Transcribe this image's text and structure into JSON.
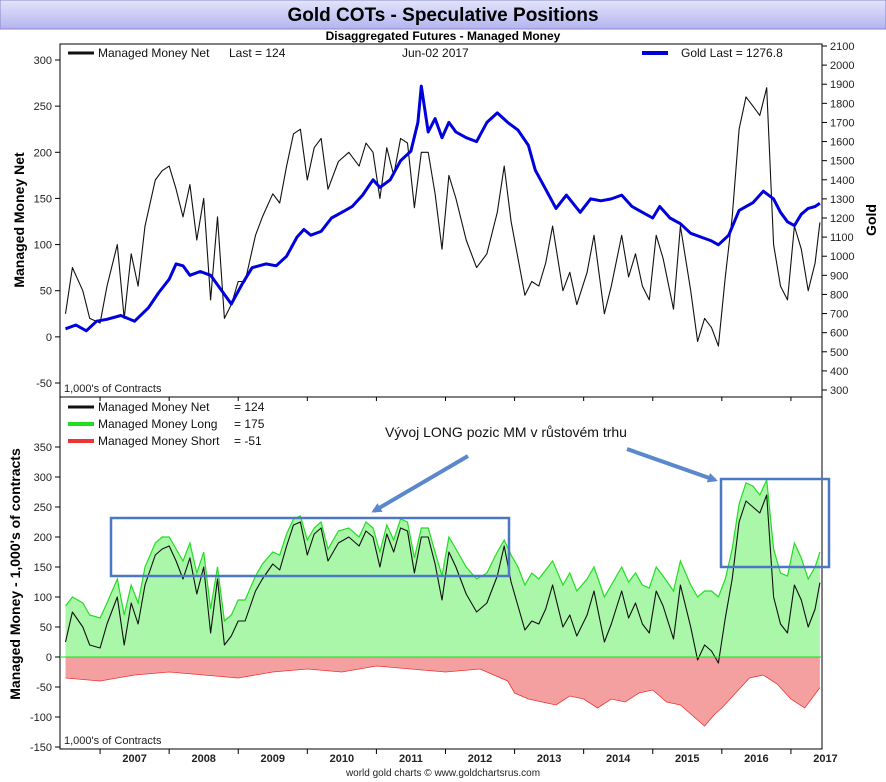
{
  "title": "Gold COTs - Speculative Positions",
  "subtitle": "Disaggregated Futures - Managed Money",
  "footer": "world gold charts © www.goldchartsrus.com",
  "annotation": "Vývoj LONG pozic MM v růstovém trhu",
  "top_panel": {
    "legend_net": "Managed Money Net",
    "legend_net_last": "Last = 124",
    "date": "Jun-02  2017",
    "legend_gold": "Gold Last = 1276.8",
    "left_axis_label": "Managed Money Net",
    "right_axis_label": "Gold",
    "contracts_label": "1,000's of Contracts",
    "left_ticks": [
      "300",
      "250",
      "200",
      "150",
      "100",
      "50",
      "0",
      "-50"
    ],
    "right_ticks": [
      "2100",
      "2000",
      "1900",
      "1800",
      "1700",
      "1600",
      "1500",
      "1400",
      "1300",
      "1200",
      "1100",
      "1000",
      "900",
      "800",
      "700",
      "600",
      "500",
      "400",
      "300"
    ]
  },
  "bottom_panel": {
    "legend_net": "Managed Money Net",
    "legend_net_value": "= 124",
    "legend_long": "Managed Money Long",
    "legend_long_value": "= 175",
    "legend_short": "Managed Money Short",
    "legend_short_value": "= -51",
    "axis_label": "Managed Money - 1,000's of contracts",
    "contracts_label": "1,000's of Contracts",
    "ticks": [
      "350",
      "300",
      "250",
      "200",
      "150",
      "100",
      "50",
      "0",
      "-50",
      "-100",
      "-150"
    ]
  },
  "x_axis": {
    "years": [
      "2007",
      "2008",
      "2009",
      "2010",
      "2011",
      "2012",
      "2013",
      "2014",
      "2015",
      "2016",
      "2017"
    ]
  },
  "colors": {
    "title_bg_top": "#e4e4fb",
    "title_bg_bottom": "#b4b4f0",
    "net_line": "#111111",
    "gold_line": "#0000dd",
    "long_fill": "#aaf7aa",
    "long_line": "#22dd22",
    "short_fill": "#f5a0a0",
    "short_line": "#ee3333",
    "box": "#4a78c4",
    "arrow": "#5b87cc"
  },
  "chart_data": [
    {
      "type": "line",
      "title": "Gold COTs - Speculative Positions",
      "ylabel": "Managed Money Net",
      "y2label": "Gold",
      "ylim": [
        -50,
        300
      ],
      "y2lim": [
        300,
        2100
      ],
      "grid": false,
      "series": [
        {
          "name": "Managed Money Net",
          "axis": "left",
          "x": [
            2006.5,
            2006.6,
            2006.75,
            2006.85,
            2007.0,
            2007.1,
            2007.25,
            2007.35,
            2007.45,
            2007.55,
            2007.65,
            2007.8,
            2007.9,
            2008.0,
            2008.1,
            2008.2,
            2008.3,
            2008.4,
            2008.5,
            2008.6,
            2008.7,
            2008.8,
            2008.9,
            2009.0,
            2009.1,
            2009.25,
            2009.35,
            2009.5,
            2009.6,
            2009.7,
            2009.8,
            2009.9,
            2010.0,
            2010.1,
            2010.2,
            2010.3,
            2010.45,
            2010.6,
            2010.75,
            2010.85,
            2010.95,
            2011.05,
            2011.15,
            2011.25,
            2011.35,
            2011.45,
            2011.55,
            2011.65,
            2011.75,
            2011.85,
            2011.95,
            2012.05,
            2012.15,
            2012.3,
            2012.45,
            2012.6,
            2012.75,
            2012.85,
            2012.95,
            2013.05,
            2013.15,
            2013.25,
            2013.35,
            2013.45,
            2013.55,
            2013.7,
            2013.8,
            2013.9,
            2014.05,
            2014.15,
            2014.3,
            2014.4,
            2014.55,
            2014.65,
            2014.75,
            2014.85,
            2014.95,
            2015.05,
            2015.15,
            2015.3,
            2015.4,
            2015.55,
            2015.65,
            2015.75,
            2015.85,
            2015.95,
            2016.05,
            2016.15,
            2016.25,
            2016.35,
            2016.45,
            2016.55,
            2016.65,
            2016.75,
            2016.85,
            2016.95,
            2017.05,
            2017.15,
            2017.25,
            2017.35,
            2017.42
          ],
          "y": [
            25,
            75,
            50,
            20,
            15,
            55,
            100,
            20,
            90,
            55,
            120,
            170,
            180,
            185,
            160,
            130,
            165,
            105,
            150,
            40,
            130,
            20,
            35,
            60,
            60,
            110,
            130,
            155,
            145,
            185,
            220,
            225,
            170,
            205,
            215,
            160,
            190,
            200,
            185,
            210,
            200,
            150,
            205,
            175,
            215,
            210,
            140,
            200,
            200,
            155,
            95,
            175,
            150,
            105,
            75,
            90,
            135,
            185,
            125,
            85,
            45,
            60,
            55,
            80,
            120,
            50,
            70,
            35,
            70,
            110,
            25,
            55,
            110,
            65,
            90,
            55,
            40,
            110,
            85,
            30,
            120,
            50,
            -5,
            20,
            10,
            -10,
            65,
            130,
            225,
            260,
            250,
            240,
            270,
            100,
            55,
            40,
            120,
            95,
            50,
            80,
            124
          ]
        },
        {
          "name": "Gold",
          "axis": "right",
          "x": [
            2006.5,
            2006.65,
            2006.8,
            2006.95,
            2007.1,
            2007.3,
            2007.5,
            2007.7,
            2007.85,
            2008.0,
            2008.1,
            2008.2,
            2008.3,
            2008.45,
            2008.6,
            2008.8,
            2008.9,
            2009.05,
            2009.2,
            2009.4,
            2009.55,
            2009.7,
            2009.85,
            2009.95,
            2010.05,
            2010.2,
            2010.35,
            2010.5,
            2010.65,
            2010.8,
            2010.95,
            2011.05,
            2011.2,
            2011.35,
            2011.5,
            2011.6,
            2011.65,
            2011.75,
            2011.85,
            2011.95,
            2012.05,
            2012.15,
            2012.3,
            2012.45,
            2012.6,
            2012.75,
            2012.9,
            2013.05,
            2013.2,
            2013.3,
            2013.45,
            2013.6,
            2013.75,
            2013.95,
            2014.1,
            2014.25,
            2014.4,
            2014.55,
            2014.7,
            2014.85,
            2015.0,
            2015.1,
            2015.25,
            2015.4,
            2015.55,
            2015.7,
            2015.85,
            2015.95,
            2016.1,
            2016.25,
            2016.45,
            2016.6,
            2016.75,
            2016.85,
            2016.95,
            2017.05,
            2017.15,
            2017.25,
            2017.35,
            2017.42
          ],
          "y": [
            620,
            640,
            610,
            660,
            670,
            690,
            660,
            730,
            810,
            880,
            960,
            950,
            900,
            920,
            900,
            800,
            750,
            850,
            940,
            960,
            950,
            1000,
            1100,
            1140,
            1110,
            1130,
            1200,
            1230,
            1260,
            1320,
            1400,
            1360,
            1400,
            1500,
            1550,
            1700,
            1890,
            1650,
            1720,
            1620,
            1700,
            1650,
            1620,
            1600,
            1700,
            1750,
            1700,
            1660,
            1580,
            1450,
            1350,
            1250,
            1320,
            1230,
            1300,
            1290,
            1300,
            1320,
            1260,
            1230,
            1200,
            1260,
            1200,
            1170,
            1120,
            1100,
            1080,
            1060,
            1110,
            1240,
            1280,
            1340,
            1300,
            1230,
            1180,
            1160,
            1220,
            1250,
            1260,
            1276.8
          ]
        }
      ]
    },
    {
      "type": "area",
      "ylabel": "Managed Money - 1,000's of contracts",
      "ylim": [
        -150,
        350
      ],
      "grid": false,
      "annotation": "Vývoj LONG pozic MM v růstovém trhu",
      "series": [
        {
          "name": "Managed Money Long",
          "x": [
            2006.5,
            2006.6,
            2006.75,
            2006.85,
            2007.0,
            2007.1,
            2007.25,
            2007.35,
            2007.45,
            2007.55,
            2007.65,
            2007.8,
            2007.9,
            2008.0,
            2008.1,
            2008.2,
            2008.3,
            2008.4,
            2008.5,
            2008.6,
            2008.7,
            2008.8,
            2008.9,
            2009.0,
            2009.1,
            2009.25,
            2009.35,
            2009.5,
            2009.6,
            2009.7,
            2009.8,
            2009.9,
            2010.0,
            2010.1,
            2010.2,
            2010.3,
            2010.45,
            2010.6,
            2010.75,
            2010.85,
            2010.95,
            2011.05,
            2011.15,
            2011.25,
            2011.35,
            2011.45,
            2011.55,
            2011.65,
            2011.75,
            2011.85,
            2011.95,
            2012.05,
            2012.15,
            2012.3,
            2012.45,
            2012.6,
            2012.75,
            2012.85,
            2012.95,
            2013.05,
            2013.15,
            2013.25,
            2013.35,
            2013.45,
            2013.55,
            2013.7,
            2013.8,
            2013.9,
            2014.05,
            2014.15,
            2014.3,
            2014.4,
            2014.55,
            2014.65,
            2014.75,
            2014.85,
            2014.95,
            2015.05,
            2015.15,
            2015.3,
            2015.4,
            2015.55,
            2015.65,
            2015.75,
            2015.85,
            2015.95,
            2016.05,
            2016.15,
            2016.25,
            2016.35,
            2016.45,
            2016.55,
            2016.65,
            2016.75,
            2016.85,
            2016.95,
            2017.05,
            2017.15,
            2017.25,
            2017.35,
            2017.42
          ],
          "y": [
            85,
            100,
            90,
            70,
            65,
            90,
            130,
            70,
            120,
            90,
            150,
            190,
            200,
            200,
            180,
            160,
            190,
            140,
            175,
            80,
            150,
            60,
            70,
            95,
            95,
            135,
            155,
            175,
            170,
            205,
            230,
            235,
            195,
            215,
            225,
            180,
            210,
            215,
            200,
            225,
            215,
            175,
            220,
            195,
            230,
            225,
            165,
            215,
            215,
            175,
            135,
            200,
            180,
            150,
            130,
            140,
            175,
            195,
            170,
            150,
            120,
            140,
            130,
            145,
            160,
            120,
            140,
            110,
            130,
            150,
            100,
            120,
            150,
            125,
            140,
            120,
            115,
            150,
            135,
            110,
            160,
            120,
            100,
            110,
            110,
            100,
            130,
            180,
            255,
            290,
            285,
            270,
            295,
            180,
            140,
            135,
            190,
            165,
            130,
            150,
            175
          ]
        },
        {
          "name": "Managed Money Short",
          "x": [
            2006.5,
            2007.0,
            2007.5,
            2008.0,
            2008.5,
            2009.0,
            2009.5,
            2010.0,
            2010.5,
            2011.0,
            2011.5,
            2012.0,
            2012.5,
            2012.9,
            2013.0,
            2013.2,
            2013.4,
            2013.6,
            2013.8,
            2014.0,
            2014.2,
            2014.4,
            2014.6,
            2014.8,
            2015.0,
            2015.2,
            2015.4,
            2015.6,
            2015.75,
            2015.9,
            2016.0,
            2016.2,
            2016.4,
            2016.6,
            2016.8,
            2017.0,
            2017.2,
            2017.42
          ],
          "y": [
            -35,
            -40,
            -30,
            -25,
            -30,
            -35,
            -25,
            -20,
            -25,
            -15,
            -20,
            -25,
            -20,
            -40,
            -60,
            -70,
            -75,
            -80,
            -65,
            -70,
            -85,
            -70,
            -75,
            -60,
            -55,
            -75,
            -80,
            -100,
            -115,
            -95,
            -85,
            -60,
            -35,
            -30,
            -45,
            -70,
            -85,
            -51
          ]
        },
        {
          "name": "Managed Money Net",
          "x": [
            2006.5,
            2006.6,
            2006.75,
            2006.85,
            2007.0,
            2007.1,
            2007.25,
            2007.35,
            2007.45,
            2007.55,
            2007.65,
            2007.8,
            2007.9,
            2008.0,
            2008.1,
            2008.2,
            2008.3,
            2008.4,
            2008.5,
            2008.6,
            2008.7,
            2008.8,
            2008.9,
            2009.0,
            2009.1,
            2009.25,
            2009.35,
            2009.5,
            2009.6,
            2009.7,
            2009.8,
            2009.9,
            2010.0,
            2010.1,
            2010.2,
            2010.3,
            2010.45,
            2010.6,
            2010.75,
            2010.85,
            2010.95,
            2011.05,
            2011.15,
            2011.25,
            2011.35,
            2011.45,
            2011.55,
            2011.65,
            2011.75,
            2011.85,
            2011.95,
            2012.05,
            2012.15,
            2012.3,
            2012.45,
            2012.6,
            2012.75,
            2012.85,
            2012.95,
            2013.05,
            2013.15,
            2013.25,
            2013.35,
            2013.45,
            2013.55,
            2013.7,
            2013.8,
            2013.9,
            2014.05,
            2014.15,
            2014.3,
            2014.4,
            2014.55,
            2014.65,
            2014.75,
            2014.85,
            2014.95,
            2015.05,
            2015.15,
            2015.3,
            2015.4,
            2015.55,
            2015.65,
            2015.75,
            2015.85,
            2015.95,
            2016.05,
            2016.15,
            2016.25,
            2016.35,
            2016.45,
            2016.55,
            2016.65,
            2016.75,
            2016.85,
            2016.95,
            2017.05,
            2017.15,
            2017.25,
            2017.35,
            2017.42
          ],
          "y": [
            25,
            75,
            50,
            20,
            15,
            55,
            100,
            20,
            90,
            55,
            120,
            170,
            180,
            185,
            160,
            130,
            165,
            105,
            150,
            40,
            130,
            20,
            35,
            60,
            60,
            110,
            130,
            155,
            145,
            185,
            220,
            225,
            170,
            205,
            215,
            160,
            190,
            200,
            185,
            210,
            200,
            150,
            205,
            175,
            215,
            210,
            140,
            200,
            200,
            155,
            95,
            175,
            150,
            105,
            75,
            90,
            135,
            185,
            125,
            85,
            45,
            60,
            55,
            80,
            120,
            50,
            70,
            35,
            70,
            110,
            25,
            55,
            110,
            65,
            90,
            55,
            40,
            110,
            85,
            30,
            120,
            50,
            -5,
            20,
            10,
            -10,
            65,
            130,
            225,
            260,
            250,
            240,
            270,
            100,
            55,
            40,
            120,
            95,
            50,
            80,
            124
          ]
        }
      ]
    }
  ]
}
